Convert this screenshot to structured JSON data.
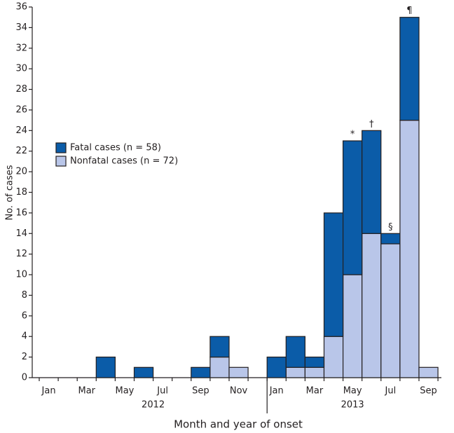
{
  "chart_data": {
    "type": "stacked-bar",
    "categories": [
      "Jan",
      null,
      "Mar",
      null,
      "May",
      null,
      "Jul",
      null,
      "Sep",
      null,
      "Nov",
      null,
      "Jan",
      null,
      "Mar",
      null,
      "May",
      null,
      "Jul",
      null,
      "Sep"
    ],
    "x_groups": [
      "2012",
      "2013"
    ],
    "series": [
      {
        "name": "Fatal cases (n = 58)",
        "color": "#0b5ca8",
        "values": [
          0,
          0,
          0,
          2,
          0,
          1,
          0,
          0,
          1,
          2,
          0,
          0,
          2,
          3,
          1,
          12,
          13,
          10,
          1,
          10,
          0
        ]
      },
      {
        "name": "Nonfatal cases (n = 72)",
        "color": "#b9c6e9",
        "values": [
          0,
          0,
          0,
          0,
          0,
          0,
          0,
          0,
          0,
          2,
          1,
          0,
          0,
          1,
          1,
          4,
          10,
          14,
          13,
          25,
          1
        ]
      }
    ],
    "annotations": [
      null,
      null,
      null,
      null,
      null,
      null,
      null,
      null,
      null,
      null,
      null,
      null,
      null,
      null,
      null,
      null,
      "*",
      "†",
      "§",
      "¶",
      null
    ],
    "ylim": [
      0,
      36
    ],
    "yticks": [
      0,
      2,
      4,
      6,
      8,
      10,
      12,
      14,
      16,
      18,
      20,
      22,
      24,
      26,
      28,
      30,
      32,
      34,
      36
    ],
    "xlabel": "Month and year of onset",
    "ylabel": "No. of cases"
  }
}
